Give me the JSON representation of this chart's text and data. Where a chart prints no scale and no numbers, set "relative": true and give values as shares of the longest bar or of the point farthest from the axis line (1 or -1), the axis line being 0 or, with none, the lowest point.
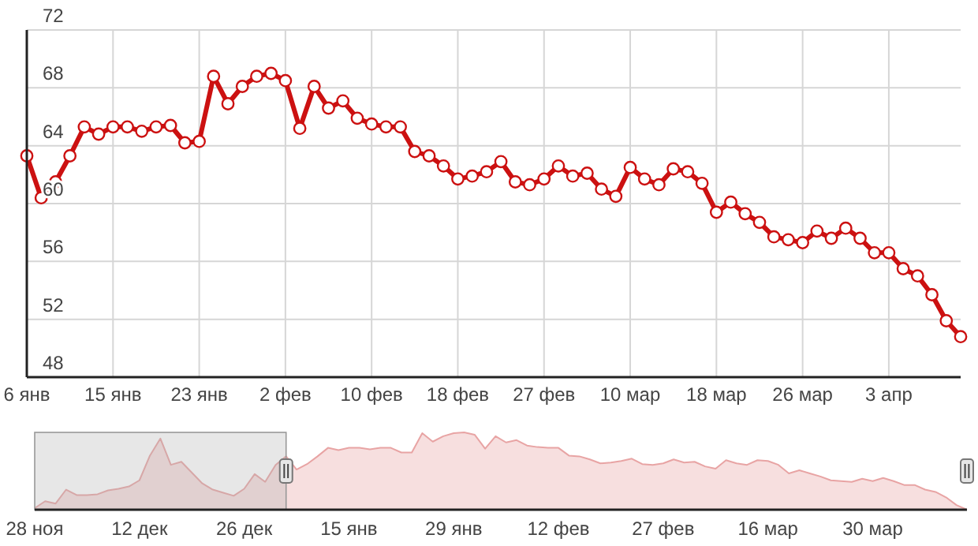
{
  "chart_data": [
    {
      "type": "line",
      "categories": [
        "6 янв",
        null,
        null,
        null,
        null,
        null,
        "15 янв",
        null,
        null,
        null,
        null,
        null,
        "23 янв",
        null,
        null,
        null,
        null,
        null,
        "2 фев",
        null,
        null,
        null,
        null,
        null,
        "10 фев",
        null,
        null,
        null,
        null,
        null,
        "18 фев",
        null,
        null,
        null,
        null,
        null,
        "27 фев",
        null,
        null,
        null,
        null,
        null,
        "10 мар",
        null,
        null,
        null,
        null,
        null,
        "18 мар",
        null,
        null,
        null,
        null,
        null,
        "26 мар",
        null,
        null,
        null,
        null,
        null,
        "3 апр",
        null,
        null,
        null,
        null,
        null
      ],
      "series": [
        {
          "color": "#cc1111",
          "values": [
            63.3,
            60.4,
            61.5,
            63.3,
            65.3,
            64.8,
            65.3,
            65.3,
            65.0,
            65.3,
            65.4,
            64.2,
            64.3,
            68.8,
            66.9,
            68.1,
            68.8,
            69.0,
            68.5,
            65.2,
            68.1,
            66.6,
            67.1,
            65.9,
            65.5,
            65.3,
            65.3,
            63.6,
            63.3,
            62.6,
            61.7,
            61.9,
            62.2,
            62.9,
            61.5,
            61.3,
            61.7,
            62.6,
            61.9,
            62.1,
            61.0,
            60.5,
            62.5,
            61.7,
            61.3,
            62.4,
            62.2,
            61.4,
            59.4,
            60.1,
            59.3,
            58.7,
            57.7,
            57.5,
            57.3,
            58.1,
            57.6,
            58.3,
            57.6,
            56.6,
            56.6,
            55.5,
            55.0,
            53.7,
            51.9,
            50.8
          ]
        }
      ],
      "ylim": [
        48,
        72
      ],
      "yticks": [
        48,
        52,
        56,
        60,
        64,
        68,
        72
      ],
      "grid": true,
      "marker": "circle"
    },
    {
      "type": "area",
      "relative": true,
      "color": "#e8a4a4",
      "categories": [
        "28 ноя",
        null,
        null,
        null,
        null,
        null,
        null,
        null,
        null,
        null,
        "12 дек",
        null,
        null,
        null,
        null,
        null,
        null,
        null,
        null,
        null,
        "26 дек",
        null,
        null,
        null,
        null,
        null,
        null,
        null,
        null,
        null,
        "15 янв",
        null,
        null,
        null,
        null,
        null,
        null,
        null,
        null,
        null,
        "29 янв",
        null,
        null,
        null,
        null,
        null,
        null,
        null,
        null,
        null,
        "12 фев",
        null,
        null,
        null,
        null,
        null,
        null,
        null,
        null,
        null,
        "27 фев",
        null,
        null,
        null,
        null,
        null,
        null,
        null,
        null,
        null,
        "16 мар",
        null,
        null,
        null,
        null,
        null,
        null,
        null,
        null,
        null,
        "30 мар",
        null,
        null,
        null,
        null,
        null,
        null,
        null,
        null,
        null
      ],
      "values": [
        0.02,
        0.11,
        0.08,
        0.26,
        0.19,
        0.19,
        0.2,
        0.25,
        0.27,
        0.3,
        0.38,
        0.7,
        0.92,
        0.58,
        0.62,
        0.48,
        0.34,
        0.26,
        0.22,
        0.18,
        0.27,
        0.46,
        0.36,
        0.58,
        0.69,
        0.52,
        0.59,
        0.69,
        0.8,
        0.77,
        0.8,
        0.8,
        0.78,
        0.8,
        0.8,
        0.74,
        0.74,
        0.99,
        0.88,
        0.95,
        0.99,
        1,
        0.97,
        0.79,
        0.95,
        0.87,
        0.9,
        0.83,
        0.81,
        0.8,
        0.8,
        0.7,
        0.69,
        0.65,
        0.6,
        0.61,
        0.63,
        0.66,
        0.59,
        0.58,
        0.6,
        0.65,
        0.61,
        0.62,
        0.56,
        0.53,
        0.64,
        0.6,
        0.58,
        0.64,
        0.63,
        0.58,
        0.47,
        0.51,
        0.47,
        0.43,
        0.38,
        0.37,
        0.36,
        0.4,
        0.37,
        0.41,
        0.37,
        0.32,
        0.32,
        0.26,
        0.23,
        0.16,
        0.06,
        0
      ]
    }
  ]
}
